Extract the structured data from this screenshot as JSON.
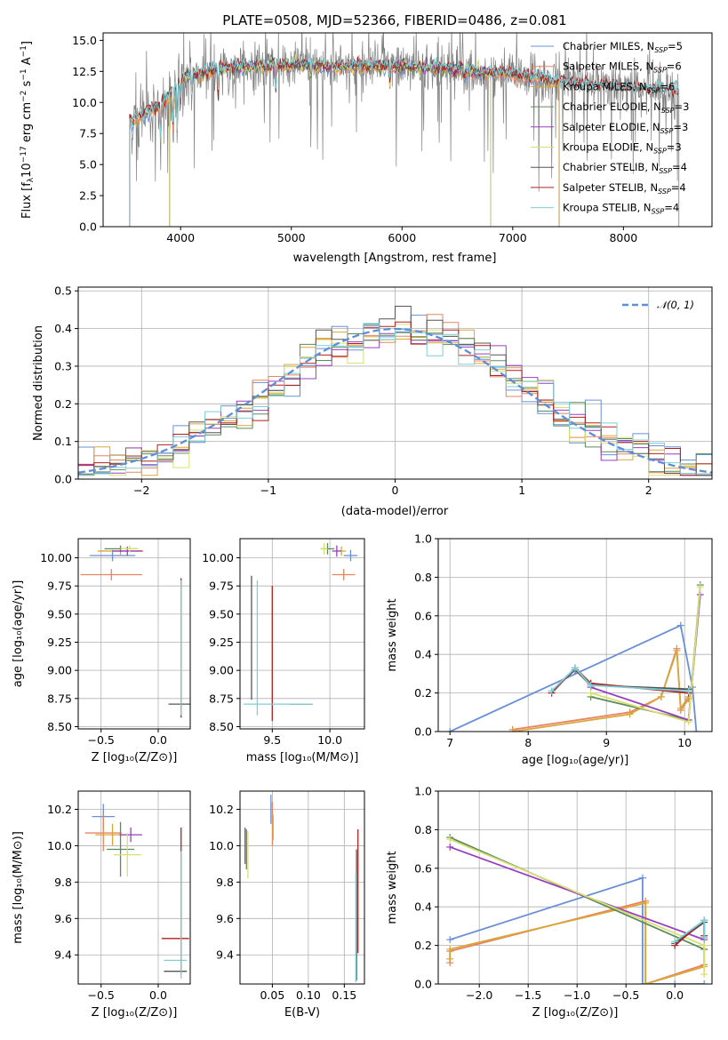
{
  "colors": {
    "chabrier_miles": "#6a8fd8",
    "salpeter_miles": "#e8845f",
    "kroupa_miles": "#d9a63a",
    "chabrier_elodie": "#5b8a5b",
    "salpeter_elodie": "#9a3fc0",
    "kroupa_elodie": "#d8e070",
    "chabrier_stelib": "#555555",
    "salpeter_stelib": "#b02020",
    "kroupa_stelib": "#7ad0d8",
    "observed": "#808080",
    "normal": "#5b8fd8",
    "grid": "#b0b0b0"
  },
  "chart_data": [
    {
      "id": "spectrum",
      "type": "line",
      "title": "PLATE=0508, MJD=52366, FIBERID=0486, z=0.081",
      "xlabel": "wavelength [Angstrom, rest frame]",
      "ylabel": "Flux [fλ10⁻¹⁷ erg cm⁻² s⁻¹ A⁻¹]",
      "xlim": [
        3300,
        8800
      ],
      "ylim": [
        0,
        15.6
      ],
      "xticks": [
        "4000",
        "5000",
        "6000",
        "7000",
        "8000"
      ],
      "yticks": [
        "0.0",
        "2.5",
        "5.0",
        "7.5",
        "10.0",
        "12.5",
        "15.0"
      ],
      "grid": false,
      "legend_position": "right",
      "legend": [
        {
          "key": "chabrier_miles",
          "base": "Chabrier MILES, N",
          "sub": "SSP",
          "tail": "=5"
        },
        {
          "key": "salpeter_miles",
          "base": "Salpeter MILES, N",
          "sub": "SSP",
          "tail": "=6"
        },
        {
          "key": "kroupa_miles",
          "base": "Kroupa MILES, N",
          "sub": "SSP",
          "tail": "=6"
        },
        {
          "key": "chabrier_elodie",
          "base": "Chabrier ELODIE, N",
          "sub": "SSP",
          "tail": "=3"
        },
        {
          "key": "salpeter_elodie",
          "base": "Salpeter ELODIE, N",
          "sub": "SSP",
          "tail": "=3"
        },
        {
          "key": "kroupa_elodie",
          "base": "Kroupa ELODIE, N",
          "sub": "SSP",
          "tail": "=3"
        },
        {
          "key": "chabrier_stelib",
          "base": "Chabrier STELIB, N",
          "sub": "SSP",
          "tail": "=4"
        },
        {
          "key": "salpeter_stelib",
          "base": "Salpeter STELIB, N",
          "sub": "SSP",
          "tail": "=4"
        },
        {
          "key": "kroupa_stelib",
          "base": "Kroupa STELIB, N",
          "sub": "SSP",
          "tail": "=4"
        }
      ],
      "continuum_knots": [
        [
          3520,
          8.3
        ],
        [
          3700,
          9.2
        ],
        [
          3850,
          10.0
        ],
        [
          3950,
          11.2
        ],
        [
          4050,
          12.1
        ],
        [
          4300,
          12.6
        ],
        [
          4600,
          12.9
        ],
        [
          5000,
          13.0
        ],
        [
          5500,
          12.9
        ],
        [
          6000,
          12.9
        ],
        [
          6500,
          12.7
        ],
        [
          7000,
          12.2
        ],
        [
          7500,
          11.6
        ],
        [
          8000,
          11.2
        ],
        [
          8500,
          10.9
        ]
      ],
      "model_ranges": {
        "miles": [
          3540,
          7420
        ],
        "elodie": [
          3900,
          6800
        ],
        "stelib": [
          3540,
          8500
        ]
      }
    },
    {
      "id": "residuals",
      "type": "step",
      "xlabel": "(data-model)/error",
      "ylabel": "Normed distribution",
      "xlim": [
        -2.5,
        2.5
      ],
      "ylim": [
        0,
        0.51
      ],
      "xticks": [
        "−2",
        "−1",
        "0",
        "1",
        "2"
      ],
      "yticks": [
        "0.0",
        "0.1",
        "0.2",
        "0.3",
        "0.4",
        "0.5"
      ],
      "grid": true,
      "legend_position": "top-right",
      "legend_label": "𝒩(0, 1)",
      "bins": 40,
      "bin_range": [
        -2.5,
        2.5
      ]
    },
    {
      "id": "age_vs_Z",
      "type": "errorbar",
      "xlabel": "Z [log₁₀(Z/Z⊙)]",
      "ylabel": "age  [log₁₀(age/yr)]",
      "xlim": [
        -0.7,
        0.28
      ],
      "ylim": [
        8.48,
        10.17
      ],
      "xticks": [
        "−0.5",
        "0.0"
      ],
      "xtick_values": [
        -0.5,
        0.0
      ],
      "yticks": [
        "8.50",
        "8.75",
        "9.00",
        "9.25",
        "9.50",
        "9.75",
        "10.00"
      ],
      "ytick_values": [
        8.5,
        8.75,
        9.0,
        9.25,
        9.5,
        9.75,
        10.0
      ],
      "grid": true,
      "points": [
        {
          "key": "chabrier_miles",
          "x": -0.4,
          "y": 10.02,
          "xerr": 0.2,
          "yerr": 0.05
        },
        {
          "key": "salpeter_miles",
          "x": -0.41,
          "y": 9.85,
          "xerr": 0.27,
          "yerr": 0.05
        },
        {
          "key": "kroupa_miles",
          "x": -0.33,
          "y": 10.06,
          "xerr": 0.2,
          "yerr": 0.04
        },
        {
          "key": "chabrier_elodie",
          "x": -0.33,
          "y": 10.08,
          "xerr": 0.14,
          "yerr": 0.03
        },
        {
          "key": "salpeter_elodie",
          "x": -0.27,
          "y": 10.06,
          "xerr": 0.13,
          "yerr": 0.04
        },
        {
          "key": "kroupa_elodie",
          "x": -0.25,
          "y": 10.08,
          "xerr": 0.08,
          "yerr": 0.03
        },
        {
          "key": "chabrier_stelib",
          "x": 0.2,
          "y": 8.7,
          "xerr": 0.11,
          "yerr": 0.02
        },
        {
          "key": "salpeter_stelib",
          "x": 0.2,
          "y": 9.2,
          "xerr": 0.0,
          "yerr": 0.62
        },
        {
          "key": "kroupa_stelib",
          "x": 0.2,
          "y": 9.2,
          "xerr": 0.0,
          "yerr": 0.6
        }
      ]
    },
    {
      "id": "age_vs_mass",
      "type": "errorbar",
      "xlabel": "mass [log₁₀(M/M⊙)]",
      "ylabel": "",
      "xlim": [
        9.22,
        10.3
      ],
      "ylim": [
        8.48,
        10.17
      ],
      "xticks": [
        "9.5",
        "10.0"
      ],
      "xtick_values": [
        9.5,
        10.0
      ],
      "yticks": [
        "8.50",
        "8.75",
        "9.00",
        "9.25",
        "9.50",
        "9.75",
        "10.00"
      ],
      "ytick_values": [
        8.5,
        8.75,
        9.0,
        9.25,
        9.5,
        9.75,
        10.0
      ],
      "grid": true,
      "points": [
        {
          "key": "chabrier_miles",
          "x": 10.18,
          "y": 10.02,
          "xerr": 0.06,
          "yerr": 0.05
        },
        {
          "key": "salpeter_miles",
          "x": 10.12,
          "y": 9.85,
          "xerr": 0.1,
          "yerr": 0.05
        },
        {
          "key": "kroupa_miles",
          "x": 10.1,
          "y": 10.06,
          "xerr": 0.04,
          "yerr": 0.04
        },
        {
          "key": "chabrier_elodie",
          "x": 9.98,
          "y": 10.08,
          "xerr": 0.06,
          "yerr": 0.05
        },
        {
          "key": "salpeter_elodie",
          "x": 10.06,
          "y": 10.06,
          "xerr": 0.04,
          "yerr": 0.05
        },
        {
          "key": "kroupa_elodie",
          "x": 9.95,
          "y": 10.08,
          "xerr": 0.03,
          "yerr": 0.05
        },
        {
          "key": "chabrier_stelib",
          "x": 9.32,
          "y": 9.29,
          "xerr": 0.0,
          "yerr": 0.55
        },
        {
          "key": "salpeter_stelib",
          "x": 9.5,
          "y": 9.15,
          "xerr": 0.0,
          "yerr": 0.6
        },
        {
          "key": "kroupa_stelib",
          "x": 9.37,
          "y": 9.2,
          "xerr": 0.0,
          "yerr": 0.6
        },
        {
          "key": "salpeter_stelib",
          "x": 9.75,
          "y": 8.7,
          "xerr": 0.1,
          "yerr": 0.0
        },
        {
          "key": "kroupa_stelib",
          "x": 9.55,
          "y": 8.7,
          "xerr": 0.3,
          "yerr": 0.0
        }
      ]
    },
    {
      "id": "weight_vs_age",
      "type": "line",
      "xlabel": "age  [log₁₀(age/yr)]",
      "ylabel": "mass weight",
      "xlim": [
        6.85,
        10.35
      ],
      "ylim": [
        0,
        1.0
      ],
      "xticks": [
        "7",
        "8",
        "9",
        "10"
      ],
      "xtick_values": [
        7,
        8,
        9,
        10
      ],
      "yticks": [
        "0.0",
        "0.2",
        "0.4",
        "0.6",
        "0.8",
        "1.0"
      ],
      "ytick_values": [
        0,
        0.2,
        0.4,
        0.6,
        0.8,
        1.0
      ],
      "grid": true,
      "series": [
        {
          "key": "chabrier_miles",
          "x": [
            7.0,
            9.95,
            10.1,
            10.15
          ],
          "y": [
            0.0,
            0.55,
            0.23,
            0.0
          ]
        },
        {
          "key": "salpeter_miles",
          "x": [
            7.8,
            9.3,
            9.7,
            9.9,
            9.95,
            10.05
          ],
          "y": [
            0.01,
            0.1,
            0.18,
            0.43,
            0.11,
            0.17
          ]
        },
        {
          "key": "kroupa_miles",
          "x": [
            7.8,
            9.3,
            9.7,
            9.9,
            9.95,
            10.05
          ],
          "y": [
            0.0,
            0.09,
            0.18,
            0.42,
            0.12,
            0.18
          ]
        },
        {
          "key": "chabrier_elodie",
          "x": [
            8.8,
            10.05,
            10.2
          ],
          "y": [
            0.18,
            0.06,
            0.76
          ]
        },
        {
          "key": "salpeter_elodie",
          "x": [
            8.8,
            10.05,
            10.2
          ],
          "y": [
            0.23,
            0.06,
            0.71
          ]
        },
        {
          "key": "kroupa_elodie",
          "x": [
            8.8,
            10.05,
            10.2
          ],
          "y": [
            0.2,
            0.05,
            0.75
          ]
        },
        {
          "key": "chabrier_stelib",
          "x": [
            8.3,
            8.6,
            8.8,
            10.05
          ],
          "y": [
            0.21,
            0.32,
            0.24,
            0.22
          ]
        },
        {
          "key": "salpeter_stelib",
          "x": [
            8.3,
            8.6,
            8.8,
            10.05
          ],
          "y": [
            0.2,
            0.33,
            0.25,
            0.2
          ]
        },
        {
          "key": "kroupa_stelib",
          "x": [
            8.3,
            8.6,
            8.8,
            10.05
          ],
          "y": [
            0.21,
            0.33,
            0.24,
            0.21
          ]
        }
      ]
    },
    {
      "id": "mass_vs_Z",
      "type": "errorbar",
      "xlabel": "Z [log₁₀(Z/Z⊙)]",
      "ylabel": "mass [log₁₀(M/M⊙)]",
      "xlim": [
        -0.7,
        0.28
      ],
      "ylim": [
        9.24,
        10.3
      ],
      "xticks": [
        "−0.5",
        "0.0"
      ],
      "xtick_values": [
        -0.5,
        0.0
      ],
      "yticks": [
        "9.4",
        "9.6",
        "9.8",
        "10.0",
        "10.2"
      ],
      "ytick_values": [
        9.4,
        9.6,
        9.8,
        10.0,
        10.2
      ],
      "grid": true,
      "points": [
        {
          "key": "chabrier_miles",
          "x": -0.48,
          "y": 10.16,
          "xerr": 0.1,
          "yerr": 0.07
        },
        {
          "key": "salpeter_miles",
          "x": -0.48,
          "y": 10.07,
          "xerr": 0.16,
          "yerr": 0.1
        },
        {
          "key": "kroupa_miles",
          "x": -0.4,
          "y": 10.06,
          "xerr": 0.15,
          "yerr": 0.06
        },
        {
          "key": "chabrier_elodie",
          "x": -0.33,
          "y": 9.98,
          "xerr": 0.12,
          "yerr": 0.15
        },
        {
          "key": "salpeter_elodie",
          "x": -0.24,
          "y": 10.06,
          "xerr": 0.1,
          "yerr": 0.04
        },
        {
          "key": "kroupa_elodie",
          "x": -0.27,
          "y": 9.95,
          "xerr": 0.12,
          "yerr": 0.12
        },
        {
          "key": "chabrier_stelib",
          "x": 0.15,
          "y": 9.31,
          "xerr": 0.1,
          "yerr": 0.0
        },
        {
          "key": "salpeter_stelib",
          "x": 0.15,
          "y": 9.49,
          "xerr": 0.12,
          "yerr": 0.0
        },
        {
          "key": "kroupa_stelib",
          "x": 0.15,
          "y": 9.37,
          "xerr": 0.1,
          "yerr": 0.0
        },
        {
          "key": "salpeter_stelib",
          "x": 0.2,
          "y": 9.7,
          "xerr": 0.0,
          "yerr": 0.4
        },
        {
          "key": "kroupa_stelib",
          "x": 0.2,
          "y": 9.62,
          "xerr": 0.0,
          "yerr": 0.35
        }
      ]
    },
    {
      "id": "mass_vs_ebv",
      "type": "errorbar",
      "xlabel": "E(B-V)",
      "ylabel": "",
      "xlim": [
        0.005,
        0.178
      ],
      "ylim": [
        9.24,
        10.3
      ],
      "xticks": [
        "0.05",
        "0.10",
        "0.15"
      ],
      "xtick_values": [
        0.05,
        0.1,
        0.15
      ],
      "yticks": [
        "9.4",
        "9.6",
        "9.8",
        "10.0",
        "10.2"
      ],
      "ytick_values": [
        9.4,
        9.6,
        9.8,
        10.0,
        10.2
      ],
      "grid": true,
      "points": [
        {
          "key": "chabrier_miles",
          "x": 0.048,
          "y": 10.2,
          "xerr": 0.0,
          "yerr": 0.08
        },
        {
          "key": "salpeter_miles",
          "x": 0.05,
          "y": 10.12,
          "xerr": 0.0,
          "yerr": 0.12
        },
        {
          "key": "kroupa_miles",
          "x": 0.051,
          "y": 10.1,
          "xerr": 0.0,
          "yerr": 0.07
        },
        {
          "key": "salpeter_elodie",
          "x": 0.012,
          "y": 10.0,
          "xerr": 0.0,
          "yerr": 0.1
        },
        {
          "key": "kroupa_elodie",
          "x": 0.016,
          "y": 9.95,
          "xerr": 0.0,
          "yerr": 0.13
        },
        {
          "key": "chabrier_elodie",
          "x": 0.014,
          "y": 9.98,
          "xerr": 0.0,
          "yerr": 0.11
        },
        {
          "key": "chabrier_stelib",
          "x": 0.167,
          "y": 9.62,
          "xerr": 0.0,
          "yerr": 0.36
        },
        {
          "key": "salpeter_stelib",
          "x": 0.169,
          "y": 9.75,
          "xerr": 0.0,
          "yerr": 0.34
        },
        {
          "key": "kroupa_stelib",
          "x": 0.166,
          "y": 9.55,
          "xerr": 0.0,
          "yerr": 0.3
        }
      ]
    },
    {
      "id": "weight_vs_Z",
      "type": "line",
      "xlabel": "Z [log₁₀(Z/Z⊙)]",
      "ylabel": "mass weight",
      "xlim": [
        -2.42,
        0.38
      ],
      "ylim": [
        0,
        1.0
      ],
      "xticks": [
        "−2.0",
        "−1.5",
        "−1.0",
        "−0.5",
        "0.0"
      ],
      "xtick_values": [
        -2.0,
        -1.5,
        -1.0,
        -0.5,
        0.0
      ],
      "yticks": [
        "0.0",
        "0.2",
        "0.4",
        "0.6",
        "0.8",
        "1.0"
      ],
      "ytick_values": [
        0,
        0.2,
        0.4,
        0.6,
        0.8,
        1.0
      ],
      "grid": true,
      "series": [
        {
          "key": "chabrier_miles",
          "x": [
            -2.3,
            -0.33,
            -0.33,
            0.0,
            0.3
          ],
          "y": [
            0.23,
            0.55,
            0.0,
            0.0,
            0.0
          ]
        },
        {
          "key": "salpeter_miles",
          "x": [
            -2.3,
            -2.3,
            -0.3,
            -0.3,
            0.3,
            0.3
          ],
          "y": [
            0.11,
            0.17,
            0.43,
            0.0,
            0.1,
            0.2
          ]
        },
        {
          "key": "kroupa_miles",
          "x": [
            -2.3,
            -2.3,
            -0.3,
            -0.3,
            0.3,
            0.3
          ],
          "y": [
            0.13,
            0.18,
            0.42,
            0.0,
            0.09,
            0.18
          ]
        },
        {
          "key": "chabrier_elodie",
          "x": [
            -2.3,
            0.3
          ],
          "y": [
            0.76,
            0.18
          ]
        },
        {
          "key": "salpeter_elodie",
          "x": [
            -2.3,
            0.3
          ],
          "y": [
            0.71,
            0.23
          ]
        },
        {
          "key": "kroupa_elodie",
          "x": [
            -2.3,
            0.3,
            0.3
          ],
          "y": [
            0.75,
            0.2,
            0.05
          ]
        },
        {
          "key": "chabrier_stelib",
          "x": [
            0.0,
            0.3,
            0.3
          ],
          "y": [
            0.21,
            0.32,
            0.24
          ]
        },
        {
          "key": "salpeter_stelib",
          "x": [
            0.0,
            0.3,
            0.3
          ],
          "y": [
            0.2,
            0.33,
            0.25
          ]
        },
        {
          "key": "kroupa_stelib",
          "x": [
            0.0,
            0.3,
            0.3
          ],
          "y": [
            0.22,
            0.33,
            0.24
          ]
        }
      ]
    }
  ]
}
